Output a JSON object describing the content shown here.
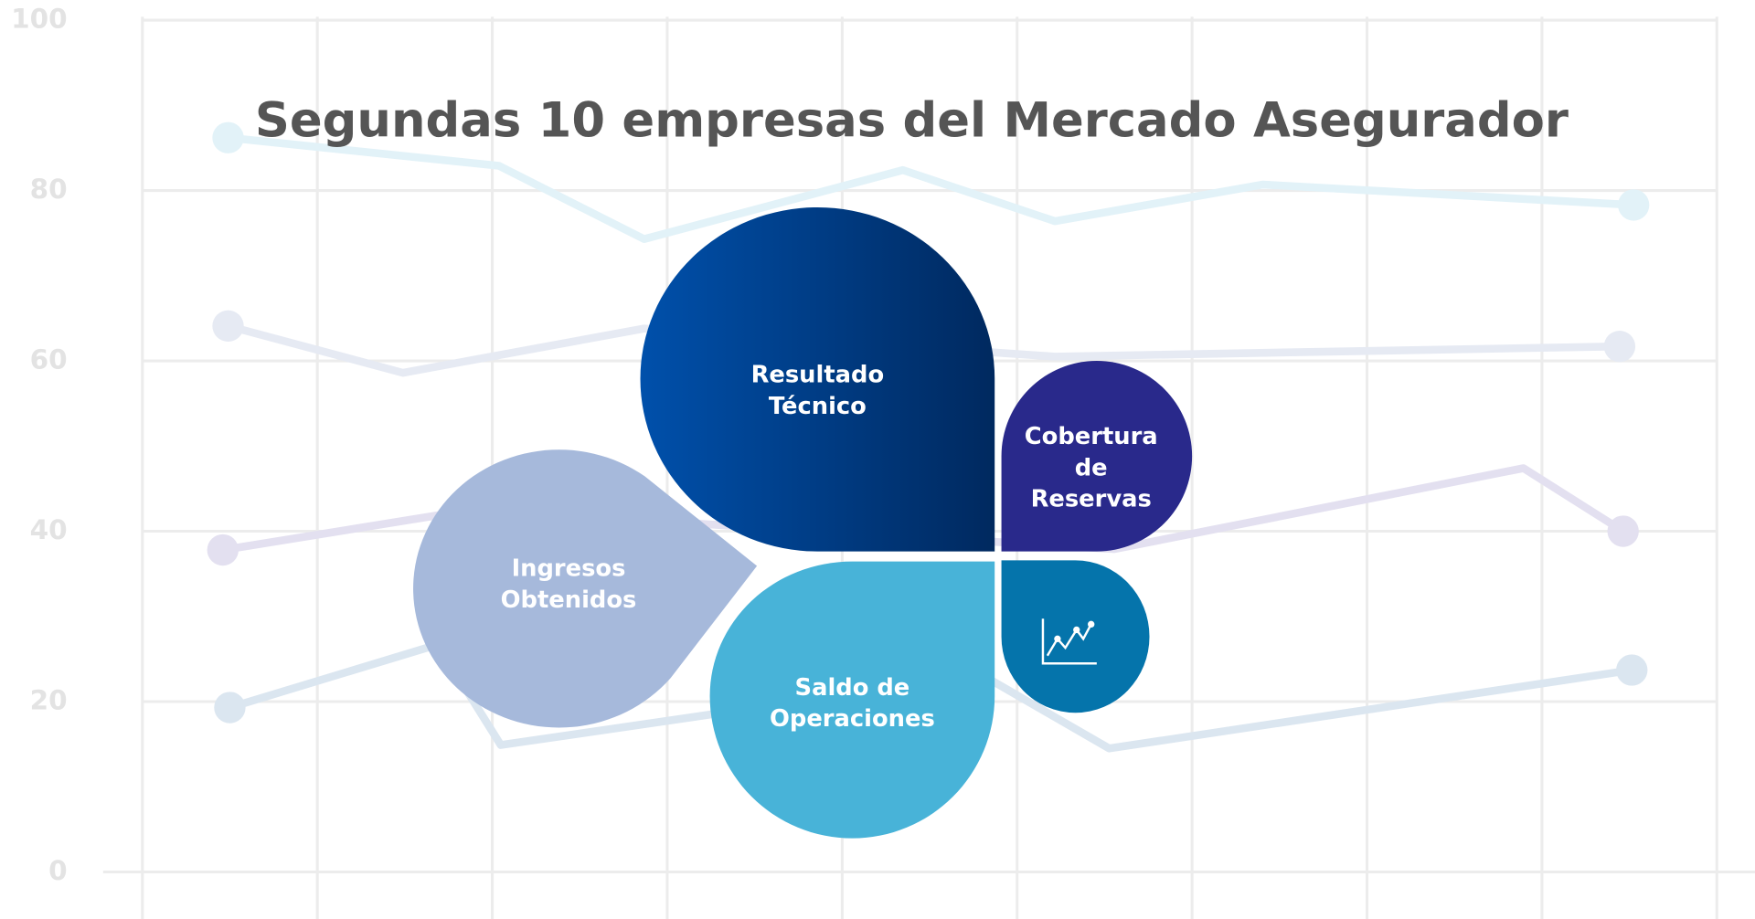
{
  "title": "Segundas 10 empresas del Mercado Asegurador",
  "background_chart": {
    "type": "line",
    "ylim": [
      0,
      100
    ],
    "yticks": [
      0,
      20,
      40,
      60,
      80,
      100
    ],
    "xlim": [
      0,
      9
    ],
    "series": [
      {
        "color": "#e2f2f8",
        "x": [
          0.49,
          2.04,
          2.87,
          4.35,
          5.22,
          6.41,
          8.53
        ],
        "values": [
          86.2,
          82.9,
          74.3,
          82.4,
          76.4,
          80.7,
          78.3
        ]
      },
      {
        "color": "#e6eaf3",
        "x": [
          0.49,
          1.49,
          2.87,
          5.22,
          8.45
        ],
        "values": [
          64.1,
          58.6,
          63.8,
          60.5,
          61.7
        ]
      },
      {
        "color": "#e3e0f0",
        "x": [
          0.46,
          1.88,
          5.56,
          7.9,
          8.47
        ],
        "values": [
          37.8,
          42.5,
          37.9,
          47.4,
          40
        ]
      },
      {
        "color": "#dbe6f0",
        "x": [
          0.5,
          1.69,
          2.05,
          3.29,
          4.83,
          5.53,
          8.52
        ],
        "values": [
          19.3,
          26.7,
          14.9,
          18.6,
          22.8,
          14.5,
          23.7
        ]
      }
    ]
  },
  "petals": [
    {
      "lines": [
        "Resultado",
        "Técnico"
      ]
    },
    {
      "lines": [
        "Cobertura",
        "de",
        "Reservas"
      ]
    },
    {
      "lines": [
        "Ingresos",
        "Obtenidos"
      ]
    },
    {
      "lines": [
        "Saldo de",
        "Operaciones"
      ]
    }
  ]
}
